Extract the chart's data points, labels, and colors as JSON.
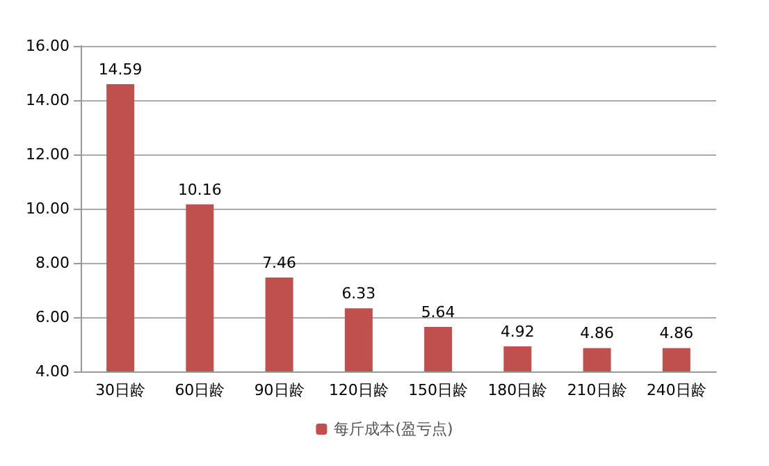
{
  "chart_data": {
    "type": "bar",
    "categories": [
      "30日龄",
      "60日龄",
      "90日龄",
      "120日龄",
      "150日龄",
      "180日龄",
      "210日龄",
      "240日龄"
    ],
    "series": [
      {
        "name": "每斤成本(盈亏点)",
        "color": "#c0504d",
        "values": [
          14.59,
          10.16,
          7.46,
          6.33,
          5.64,
          4.92,
          4.86,
          4.86
        ]
      }
    ],
    "ylim": [
      4,
      16
    ],
    "yticks": [
      {
        "value": 4,
        "label": "4.00"
      },
      {
        "value": 6,
        "label": "6.00"
      },
      {
        "value": 8,
        "label": "8.00"
      },
      {
        "value": 10,
        "label": "10.00"
      },
      {
        "value": 12,
        "label": "12.00"
      },
      {
        "value": 14,
        "label": "14.00"
      },
      {
        "value": 16,
        "label": "16.00"
      }
    ],
    "grid": true,
    "legend": "bottom",
    "data_labels": true
  }
}
